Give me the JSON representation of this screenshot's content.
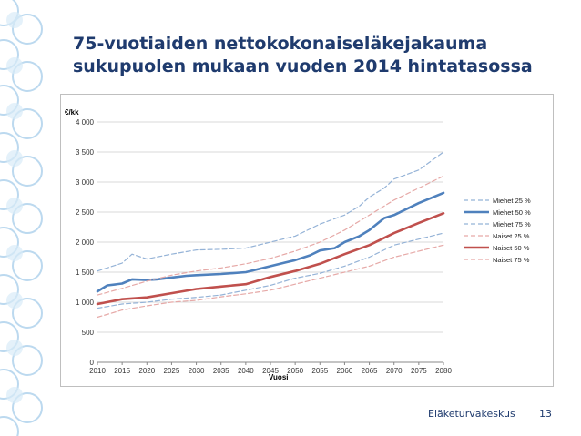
{
  "slide": {
    "title_line1": "75-vuotiaiden nettokokonaiseläkejakauma",
    "title_line2": "sukupuolen mukaan vuoden 2014 hintatasossa",
    "footer_org": "Eläketurvakeskus",
    "page_number": "13"
  },
  "colors": {
    "title": "#1f3b6e",
    "men": "#4f81bd",
    "men_light": "#95b3d7",
    "women": "#c0504d",
    "women_light": "#e6a9a7"
  },
  "chart_data": {
    "type": "line",
    "ylabel": "€/kk",
    "xlabel": "Vuosi",
    "xlim": [
      2010,
      2080
    ],
    "ylim": [
      0,
      4000
    ],
    "x_ticks": [
      2010,
      2015,
      2020,
      2025,
      2030,
      2035,
      2040,
      2045,
      2050,
      2055,
      2060,
      2065,
      2070,
      2075,
      2080
    ],
    "y_ticks": [
      0,
      500,
      1000,
      1500,
      2000,
      2500,
      3000,
      3500,
      4000
    ],
    "y_tick_labels": [
      "0",
      "500",
      "1 000",
      "1 500",
      "2 000",
      "2 500",
      "3 000",
      "3 500",
      "4 000"
    ],
    "legend_position": "right",
    "series": [
      {
        "name": "Miehet 25 %",
        "color": "#95b3d7",
        "dash": true,
        "width": 1.2,
        "x": [
          2010,
          2015,
          2020,
          2025,
          2030,
          2035,
          2040,
          2045,
          2050,
          2055,
          2060,
          2065,
          2070,
          2075,
          2080
        ],
        "values": [
          900,
          970,
          1000,
          1050,
          1080,
          1120,
          1200,
          1280,
          1400,
          1480,
          1600,
          1750,
          1950,
          2050,
          2150
        ]
      },
      {
        "name": "Miehet 50 %",
        "color": "#4f81bd",
        "dash": false,
        "width": 2.6,
        "x": [
          2010,
          2012,
          2015,
          2017,
          2020,
          2022,
          2025,
          2028,
          2030,
          2035,
          2040,
          2045,
          2048,
          2050,
          2053,
          2055,
          2058,
          2060,
          2063,
          2065,
          2068,
          2070,
          2075,
          2080
        ],
        "values": [
          1180,
          1280,
          1310,
          1380,
          1370,
          1380,
          1410,
          1440,
          1450,
          1470,
          1500,
          1600,
          1660,
          1700,
          1780,
          1860,
          1900,
          2000,
          2100,
          2200,
          2400,
          2450,
          2650,
          2820
        ]
      },
      {
        "name": "Miehet 75 %",
        "color": "#95b3d7",
        "dash": true,
        "width": 1.2,
        "x": [
          2010,
          2015,
          2017,
          2020,
          2025,
          2030,
          2035,
          2040,
          2045,
          2050,
          2055,
          2060,
          2063,
          2065,
          2068,
          2070,
          2075,
          2080
        ],
        "values": [
          1520,
          1650,
          1800,
          1720,
          1800,
          1870,
          1880,
          1900,
          2000,
          2100,
          2300,
          2450,
          2600,
          2750,
          2900,
          3050,
          3200,
          3500
        ]
      },
      {
        "name": "Naiset 25 %",
        "color": "#e6a9a7",
        "dash": true,
        "width": 1.2,
        "x": [
          2010,
          2015,
          2020,
          2025,
          2030,
          2035,
          2040,
          2045,
          2050,
          2055,
          2060,
          2065,
          2070,
          2075,
          2080
        ],
        "values": [
          750,
          870,
          940,
          1000,
          1030,
          1090,
          1140,
          1200,
          1300,
          1400,
          1500,
          1600,
          1750,
          1850,
          1950
        ]
      },
      {
        "name": "Naiset 50 %",
        "color": "#c0504d",
        "dash": false,
        "width": 2.6,
        "x": [
          2010,
          2015,
          2020,
          2025,
          2030,
          2035,
          2040,
          2045,
          2050,
          2055,
          2060,
          2065,
          2070,
          2075,
          2080
        ],
        "values": [
          970,
          1050,
          1080,
          1150,
          1220,
          1260,
          1300,
          1420,
          1520,
          1640,
          1800,
          1950,
          2150,
          2320,
          2480
        ]
      },
      {
        "name": "Naiset 75 %",
        "color": "#e6a9a7",
        "dash": true,
        "width": 1.2,
        "x": [
          2010,
          2015,
          2020,
          2025,
          2030,
          2035,
          2040,
          2045,
          2050,
          2055,
          2060,
          2065,
          2070,
          2075,
          2080
        ],
        "values": [
          1120,
          1230,
          1350,
          1450,
          1520,
          1570,
          1640,
          1730,
          1850,
          2000,
          2200,
          2450,
          2700,
          2900,
          3100
        ]
      }
    ]
  }
}
